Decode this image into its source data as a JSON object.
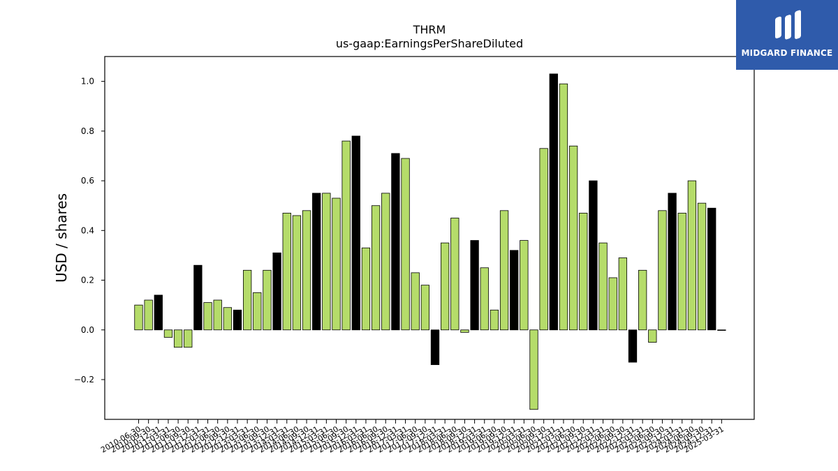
{
  "colors": {
    "green": "#b5dc6a",
    "black": "#000000",
    "axis": "#000000",
    "brand": "#2f5bab"
  },
  "brand": {
    "name": "MIDGARD FINANCE",
    "icon": "midgard-logo-icon"
  },
  "chart_data": {
    "type": "bar",
    "title": "THRM",
    "subtitle": "us-gaap:EarningsPerShareDiluted",
    "xlabel": "",
    "ylabel": "USD / shares",
    "ylim": [
      -0.36,
      1.1
    ],
    "yticks": [
      -0.2,
      0.0,
      0.2,
      0.4,
      0.6,
      0.8,
      1.0
    ],
    "ytick_labels": [
      "−0.2",
      "0.0",
      "0.2",
      "0.4",
      "0.6",
      "0.8",
      "1.0"
    ],
    "grid": false,
    "categories": [
      "2010-06-30",
      "2010-09-30",
      "2010-12-31",
      "2011-03-31",
      "2011-06-30",
      "2011-09-30",
      "2011-12-31",
      "2012-03-31",
      "2012-06-30",
      "2012-09-30",
      "2012-12-31",
      "2013-03-31",
      "2013-06-30",
      "2013-09-30",
      "2013-12-31",
      "2014-03-31",
      "2014-06-30",
      "2014-09-30",
      "2014-12-31",
      "2015-03-31",
      "2015-06-30",
      "2015-09-30",
      "2015-12-31",
      "2016-03-31",
      "2016-06-30",
      "2016-09-30",
      "2016-12-31",
      "2017-03-31",
      "2017-06-30",
      "2017-09-30",
      "2017-12-31",
      "2018-03-31",
      "2018-06-30",
      "2018-09-30",
      "2018-12-31",
      "2019-03-31",
      "2019-06-30",
      "2019-09-30",
      "2019-12-31",
      "2020-03-31",
      "2020-06-30",
      "2020-09-30",
      "2020-12-31",
      "2021-03-31",
      "2021-06-30",
      "2021-09-30",
      "2021-12-31",
      "2022-03-31",
      "2022-06-30",
      "2022-09-30",
      "2022-12-31",
      "2023-03-31",
      "2023-06-30",
      "2023-09-30",
      "2023-12-31",
      "2024-03-31",
      "2024-06-30",
      "2024-09-30",
      "2024-12-31",
      "2025-03-31"
    ],
    "values": [
      0.1,
      0.12,
      0.14,
      -0.03,
      -0.07,
      -0.07,
      0.26,
      0.11,
      0.12,
      0.09,
      0.08,
      0.24,
      0.15,
      0.24,
      0.31,
      0.47,
      0.46,
      0.48,
      0.55,
      0.55,
      0.53,
      0.76,
      0.78,
      0.33,
      0.5,
      0.55,
      0.71,
      0.69,
      0.23,
      0.18,
      -0.14,
      0.35,
      0.45,
      -0.01,
      0.36,
      0.25,
      0.08,
      0.48,
      0.32,
      0.36,
      -0.32,
      0.73,
      1.03,
      0.99,
      0.74,
      0.47,
      0.6,
      0.35,
      0.21,
      0.29,
      -0.13,
      0.24,
      -0.05,
      0.48,
      0.55,
      0.47,
      0.6,
      0.51,
      0.49,
      0.0
    ],
    "annual": [
      false,
      false,
      true,
      false,
      false,
      false,
      true,
      false,
      false,
      false,
      true,
      false,
      false,
      false,
      true,
      false,
      false,
      false,
      true,
      false,
      false,
      false,
      true,
      false,
      false,
      false,
      true,
      false,
      false,
      false,
      true,
      false,
      false,
      false,
      true,
      false,
      false,
      false,
      true,
      false,
      false,
      false,
      true,
      false,
      false,
      false,
      true,
      false,
      false,
      false,
      true,
      false,
      false,
      false,
      true,
      false,
      false,
      false,
      true,
      false
    ]
  }
}
